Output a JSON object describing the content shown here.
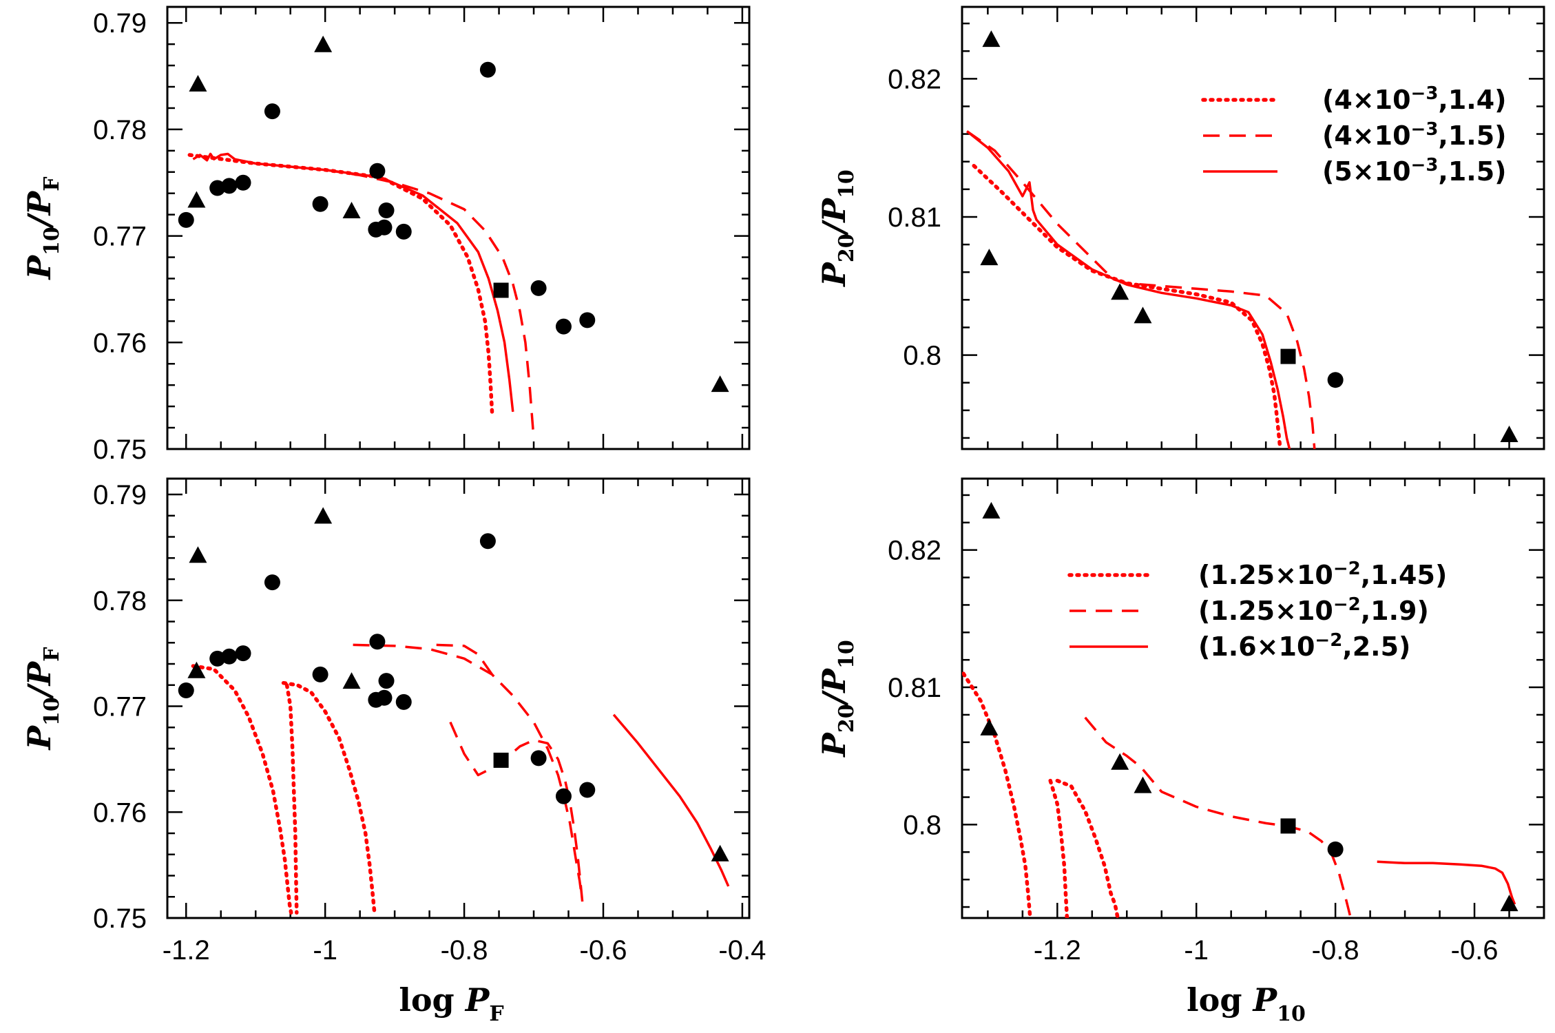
{
  "chart_data": [
    {
      "id": "top-left",
      "type": "scatter",
      "xlim": [
        -1.227,
        -0.39
      ],
      "ylim": [
        0.75,
        0.7915
      ],
      "xticks": [],
      "yticks": [
        "0.75",
        "0.76",
        "0.77",
        "0.78",
        "0.79"
      ],
      "ytick_values": [
        0.75,
        0.76,
        0.77,
        0.78,
        0.79
      ],
      "ylabel": {
        "main": "P",
        "sub1": "10",
        "slash": "/P",
        "sub2": "F"
      },
      "points": {
        "circle": [
          [
            -1.2,
            0.7715
          ],
          [
            -1.155,
            0.7745
          ],
          [
            -1.138,
            0.7747
          ],
          [
            -1.118,
            0.775
          ],
          [
            -1.076,
            0.7817
          ],
          [
            -1.007,
            0.773
          ],
          [
            -0.925,
            0.7761
          ],
          [
            -0.927,
            0.7706
          ],
          [
            -0.915,
            0.7708
          ],
          [
            -0.912,
            0.7724
          ],
          [
            -0.887,
            0.7704
          ],
          [
            -0.766,
            0.7856
          ],
          [
            -0.693,
            0.7651
          ],
          [
            -0.657,
            0.7615
          ],
          [
            -0.623,
            0.7621
          ]
        ],
        "triangle": [
          [
            -1.185,
            0.7733
          ],
          [
            -1.183,
            0.7842
          ],
          [
            -1.003,
            0.7879
          ],
          [
            -0.962,
            0.7723
          ],
          [
            -0.432,
            0.756
          ]
        ],
        "square": [
          [
            -0.747,
            0.7649
          ]
        ]
      },
      "series": [
        {
          "style": "dotted",
          "x": [
            -1.195,
            -1.1,
            -1.0,
            -0.92,
            -0.86,
            -0.82,
            -0.795,
            -0.78,
            -0.77,
            -0.765,
            -0.762,
            -0.76
          ],
          "y": [
            0.7776,
            0.7768,
            0.7762,
            0.7755,
            0.7735,
            0.771,
            0.768,
            0.765,
            0.762,
            0.759,
            0.756,
            0.7535
          ]
        },
        {
          "style": "solid",
          "x": [
            -1.19,
            -1.18,
            -1.17,
            -1.165,
            -1.16,
            -1.15,
            -1.14,
            -1.13,
            -1.1,
            -1.0,
            -0.92,
            -0.86,
            -0.81,
            -0.78,
            -0.765,
            -0.752,
            -0.742,
            -0.735,
            -0.73
          ],
          "y": [
            0.7772,
            0.7776,
            0.7771,
            0.7777,
            0.7772,
            0.7776,
            0.7777,
            0.7772,
            0.7768,
            0.7762,
            0.7755,
            0.7738,
            0.7712,
            0.7685,
            0.766,
            0.763,
            0.76,
            0.7565,
            0.7535
          ]
        },
        {
          "style": "dashed",
          "x": [
            -1.0,
            -0.95,
            -0.9,
            -0.85,
            -0.8,
            -0.77,
            -0.745,
            -0.73,
            -0.72,
            -0.712,
            -0.706,
            -0.7
          ],
          "y": [
            0.7762,
            0.7757,
            0.775,
            0.774,
            0.7725,
            0.7705,
            0.768,
            0.7655,
            0.763,
            0.76,
            0.756,
            0.751
          ]
        }
      ]
    },
    {
      "id": "top-right",
      "type": "scatter",
      "xlim": [
        -1.337,
        -0.5
      ],
      "ylim": [
        0.7932,
        0.8252
      ],
      "xticks": [],
      "yticks": [
        "0.8",
        "0.81",
        "0.82"
      ],
      "ytick_values": [
        0.8,
        0.81,
        0.82
      ],
      "ylabel": {
        "main": "P",
        "sub1": "20",
        "slash": "/P",
        "sub2": "10"
      },
      "points": {
        "circle": [
          [
            -0.8,
            0.7982
          ]
        ],
        "triangle": [
          [
            -1.295,
            0.8228
          ],
          [
            -1.298,
            0.807
          ],
          [
            -1.11,
            0.8045
          ],
          [
            -1.077,
            0.8028
          ],
          [
            -0.55,
            0.7942
          ]
        ],
        "square": [
          [
            -0.868,
            0.7999
          ]
        ]
      },
      "series": [
        {
          "style": "dotted",
          "x": [
            -1.32,
            -1.28,
            -1.24,
            -1.2,
            -1.15,
            -1.1,
            -1.05,
            -1.0,
            -0.95,
            -0.92,
            -0.905,
            -0.895,
            -0.888,
            -0.884,
            -0.88
          ],
          "y": [
            0.8137,
            0.8118,
            0.8098,
            0.8078,
            0.8061,
            0.8052,
            0.8048,
            0.8044,
            0.8038,
            0.8025,
            0.8008,
            0.799,
            0.7972,
            0.7955,
            0.7935
          ]
        },
        {
          "style": "solid",
          "x": [
            -1.33,
            -1.3,
            -1.27,
            -1.25,
            -1.24,
            -1.235,
            -1.23,
            -1.2,
            -1.15,
            -1.1,
            -1.05,
            -1.0,
            -0.95,
            -0.925,
            -0.905,
            -0.893,
            -0.883,
            -0.875,
            -0.87,
            -0.866
          ],
          "y": [
            0.8162,
            0.815,
            0.8133,
            0.8115,
            0.8125,
            0.8105,
            0.8098,
            0.808,
            0.8062,
            0.8051,
            0.8045,
            0.8041,
            0.8036,
            0.8031,
            0.8015,
            0.7995,
            0.7975,
            0.7955,
            0.794,
            0.7932
          ]
        },
        {
          "style": "dashed",
          "x": [
            -1.33,
            -1.29,
            -1.25,
            -1.2,
            -1.15,
            -1.12,
            -1.1,
            -1.05,
            -1.0,
            -0.95,
            -0.9,
            -0.87,
            -0.855,
            -0.845,
            -0.838,
            -0.833,
            -0.83
          ],
          "y": [
            0.8162,
            0.8148,
            0.8125,
            0.8095,
            0.807,
            0.8055,
            0.8052,
            0.805,
            0.8048,
            0.8046,
            0.8043,
            0.803,
            0.801,
            0.799,
            0.797,
            0.795,
            0.7932
          ]
        }
      ],
      "legend": [
        {
          "style": "dotted",
          "label_a": "(4×10",
          "label_exp": "−3",
          "label_b": ",1.4)"
        },
        {
          "style": "dashed",
          "label_a": "(4×10",
          "label_exp": "−3",
          "label_b": ",1.5)"
        },
        {
          "style": "solid",
          "label_a": "(5×10",
          "label_exp": "−3",
          "label_b": ",1.5)"
        }
      ]
    },
    {
      "id": "bottom-left",
      "type": "scatter",
      "xlim": [
        -1.227,
        -0.39
      ],
      "ylim": [
        0.75,
        0.7915
      ],
      "xticks": [
        "-1.2",
        "-1",
        "-0.8",
        "-0.6",
        "-0.4"
      ],
      "xtick_values": [
        -1.2,
        -1.0,
        -0.8,
        -0.6,
        -0.4
      ],
      "yticks": [
        "0.75",
        "0.76",
        "0.77",
        "0.78",
        "0.79"
      ],
      "ytick_values": [
        0.75,
        0.76,
        0.77,
        0.78,
        0.79
      ],
      "xlabel": {
        "main": "log P",
        "sub": "F"
      },
      "ylabel": {
        "main": "P",
        "sub1": "10",
        "slash": "/P",
        "sub2": "F"
      },
      "points": {
        "circle": [
          [
            -1.2,
            0.7715
          ],
          [
            -1.155,
            0.7745
          ],
          [
            -1.138,
            0.7747
          ],
          [
            -1.118,
            0.775
          ],
          [
            -1.076,
            0.7817
          ],
          [
            -1.007,
            0.773
          ],
          [
            -0.925,
            0.7761
          ],
          [
            -0.927,
            0.7706
          ],
          [
            -0.915,
            0.7708
          ],
          [
            -0.912,
            0.7724
          ],
          [
            -0.887,
            0.7704
          ],
          [
            -0.766,
            0.7856
          ],
          [
            -0.693,
            0.7651
          ],
          [
            -0.657,
            0.7615
          ],
          [
            -0.623,
            0.7621
          ]
        ],
        "triangle": [
          [
            -1.185,
            0.7733
          ],
          [
            -1.183,
            0.7842
          ],
          [
            -1.003,
            0.7879
          ],
          [
            -0.962,
            0.7723
          ],
          [
            -0.432,
            0.756
          ]
        ],
        "square": [
          [
            -0.747,
            0.7649
          ]
        ]
      },
      "series": [
        {
          "style": "dotted",
          "x": [
            -1.19,
            -1.16,
            -1.13,
            -1.11,
            -1.09,
            -1.075,
            -1.065,
            -1.058,
            -1.054,
            -1.051,
            -1.049
          ],
          "y": [
            0.7738,
            0.7735,
            0.7715,
            0.769,
            0.7655,
            0.762,
            0.7585,
            0.7555,
            0.753,
            0.7512,
            0.7505
          ]
        },
        {
          "style": "dotted",
          "x": [
            -1.055,
            -1.05,
            -1.047,
            -1.045,
            -1.043,
            -1.042,
            -1.041
          ],
          "y": [
            0.772,
            0.77,
            0.766,
            0.762,
            0.758,
            0.754,
            0.7505
          ]
        },
        {
          "style": "dotted",
          "x": [
            -1.06,
            -1.04,
            -1.02,
            -1.0,
            -0.98,
            -0.965,
            -0.952,
            -0.942,
            -0.936,
            -0.932,
            -0.929
          ],
          "y": [
            0.7722,
            0.772,
            0.7713,
            0.7695,
            0.767,
            0.764,
            0.761,
            0.758,
            0.755,
            0.7525,
            0.7505
          ]
        },
        {
          "style": "dashed",
          "x": [
            -0.82,
            -0.8,
            -0.78,
            -0.75,
            -0.72,
            -0.7,
            -0.68,
            -0.665,
            -0.655,
            -0.648,
            -0.642,
            -0.637,
            -0.633,
            -0.63
          ],
          "y": [
            0.7685,
            0.7655,
            0.7635,
            0.7645,
            0.7662,
            0.7668,
            0.7665,
            0.765,
            0.763,
            0.761,
            0.7585,
            0.756,
            0.7535,
            0.7515
          ]
        },
        {
          "style": "dashed",
          "x": [
            -0.84,
            -0.8,
            -0.78,
            -0.76
          ],
          "y": [
            0.7758,
            0.7757,
            0.7749,
            0.773
          ]
        },
        {
          "style": "dashed",
          "x": [
            -0.96,
            -0.9,
            -0.85,
            -0.8,
            -0.76,
            -0.73,
            -0.7,
            -0.68,
            -0.665,
            -0.655,
            -0.648,
            -0.643,
            -0.638,
            -0.634,
            -0.631
          ],
          "y": [
            0.7758,
            0.7757,
            0.7754,
            0.7745,
            0.773,
            0.771,
            0.7685,
            0.766,
            0.7635,
            0.761,
            0.759,
            0.757,
            0.755,
            0.7535,
            0.752
          ]
        },
        {
          "style": "solid",
          "x": [
            -0.585,
            -0.55,
            -0.52,
            -0.49,
            -0.465,
            -0.445,
            -0.43,
            -0.42
          ],
          "y": [
            0.7692,
            0.7665,
            0.764,
            0.7615,
            0.759,
            0.7565,
            0.7545,
            0.753
          ]
        }
      ]
    },
    {
      "id": "bottom-right",
      "type": "scatter",
      "xlim": [
        -1.337,
        -0.5
      ],
      "ylim": [
        0.7932,
        0.8252
      ],
      "xticks": [
        "-1.2",
        "-1",
        "-0.8",
        "-0.6"
      ],
      "xtick_values": [
        -1.2,
        -1.0,
        -0.8,
        -0.6
      ],
      "yticks": [
        "0.8",
        "0.81",
        "0.82"
      ],
      "ytick_values": [
        0.8,
        0.81,
        0.82
      ],
      "xlabel": {
        "main": "log P",
        "sub": "10"
      },
      "ylabel": {
        "main": "P",
        "sub1": "20",
        "slash": "/P",
        "sub2": "10"
      },
      "points": {
        "circle": [
          [
            -0.8,
            0.7982
          ]
        ],
        "triangle": [
          [
            -1.295,
            0.8228
          ],
          [
            -1.298,
            0.807
          ],
          [
            -1.11,
            0.8045
          ],
          [
            -1.077,
            0.8028
          ],
          [
            -0.55,
            0.7942
          ]
        ],
        "square": [
          [
            -0.868,
            0.7999
          ]
        ]
      },
      "series": [
        {
          "style": "dotted",
          "x": [
            -1.335,
            -1.31,
            -1.29,
            -1.275,
            -1.263,
            -1.253,
            -1.246,
            -1.242,
            -1.239
          ],
          "y": [
            0.811,
            0.809,
            0.8065,
            0.804,
            0.8015,
            0.799,
            0.797,
            0.795,
            0.7932
          ]
        },
        {
          "style": "dotted",
          "x": [
            -1.21,
            -1.2,
            -1.195,
            -1.19,
            -1.188,
            -1.186
          ],
          "y": [
            0.8032,
            0.8015,
            0.7995,
            0.797,
            0.795,
            0.7932
          ]
        },
        {
          "style": "dotted",
          "x": [
            -1.2,
            -1.18,
            -1.16,
            -1.145,
            -1.132,
            -1.123,
            -1.117,
            -1.113
          ],
          "y": [
            0.8032,
            0.8028,
            0.801,
            0.799,
            0.797,
            0.795,
            0.7942,
            0.7932
          ]
        },
        {
          "style": "dashed",
          "x": [
            -1.16,
            -1.13,
            -1.1,
            -1.08,
            -1.06,
            -1.05,
            -1.0,
            -0.95,
            -0.9,
            -0.87,
            -0.84,
            -0.82,
            -0.805,
            -0.795,
            -0.787,
            -0.782,
            -0.778
          ],
          "y": [
            0.8078,
            0.806,
            0.805,
            0.8042,
            0.803,
            0.8024,
            0.8013,
            0.8006,
            0.8001,
            0.7999,
            0.7995,
            0.7988,
            0.7978,
            0.7965,
            0.795,
            0.794,
            0.7932
          ]
        },
        {
          "style": "solid",
          "x": [
            -0.74,
            -0.7,
            -0.66,
            -0.62,
            -0.59,
            -0.57,
            -0.56,
            -0.552,
            -0.546,
            -0.542
          ],
          "y": [
            0.7973,
            0.7972,
            0.7972,
            0.7971,
            0.797,
            0.7968,
            0.7965,
            0.7957,
            0.7947,
            0.7942
          ]
        }
      ],
      "legend": [
        {
          "style": "dotted",
          "label_a": "(1.25×10",
          "label_exp": "−2",
          "label_b": ",1.45)"
        },
        {
          "style": "dashed",
          "label_a": "(1.25×10",
          "label_exp": "−2",
          "label_b": ",1.9)"
        },
        {
          "style": "solid",
          "label_a": "(1.6×10",
          "label_exp": "−2",
          "label_b": ",2.5)"
        }
      ]
    }
  ],
  "colors": {
    "model_curves": "#ff0000",
    "markers": "#000000",
    "frame": "#000000"
  }
}
